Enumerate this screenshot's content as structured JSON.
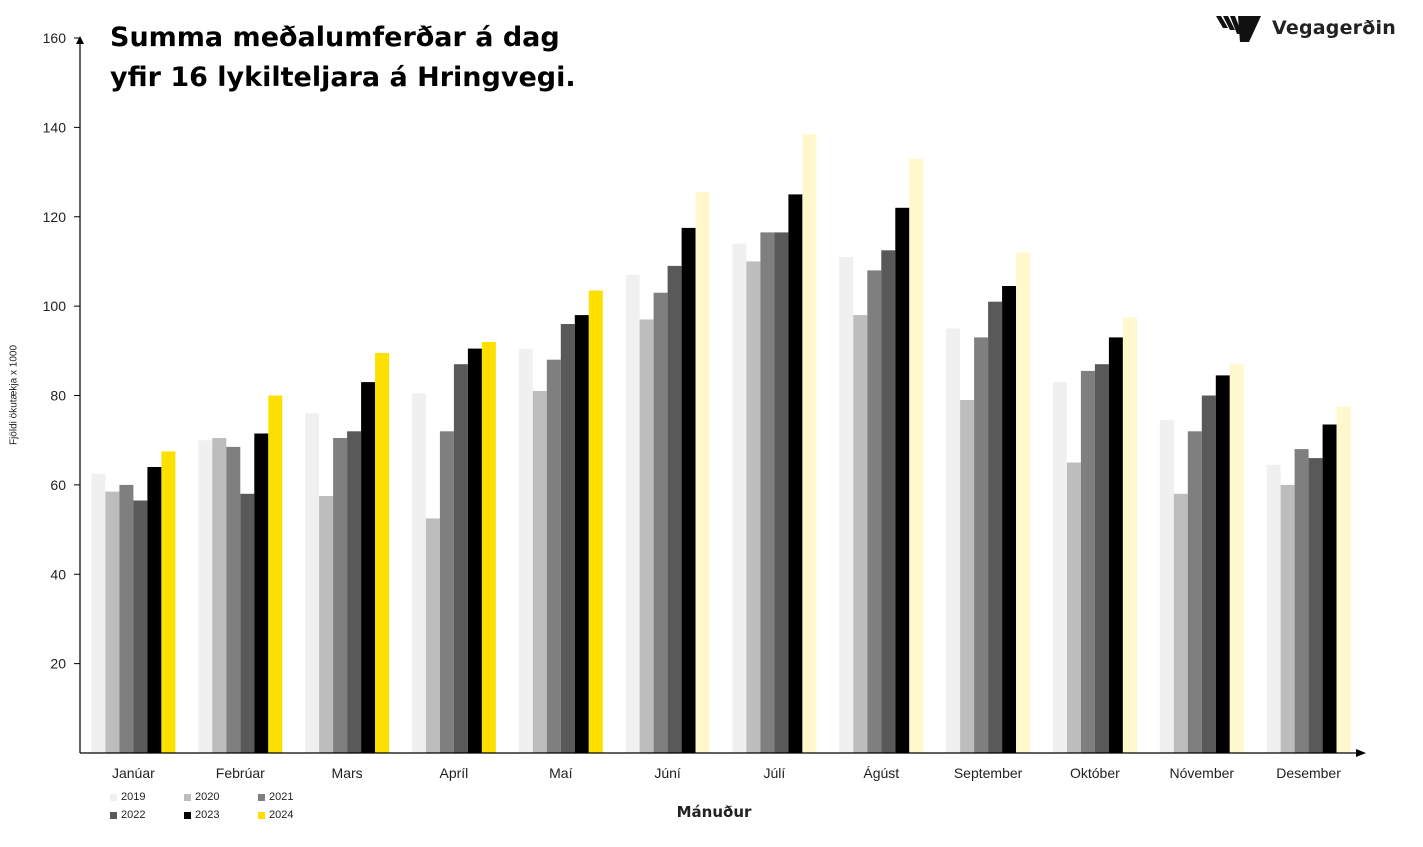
{
  "title_lines": [
    "Summa meðalumferðar á dag",
    "yfir 16 lykilteljara á Hringvegi."
  ],
  "logo": {
    "text": "Vegagerðin",
    "icon": "stripes-logo-icon"
  },
  "chart_data": {
    "type": "bar",
    "title": "Summa meðalumferðar á dag yfir 16 lykilteljara á Hringvegi.",
    "xlabel": "Mánuður",
    "ylabel": "Fjöldi ökutækja x 1000",
    "ylim": [
      0,
      160
    ],
    "yticks": [
      20,
      40,
      60,
      80,
      100,
      120,
      140,
      160
    ],
    "grid": false,
    "legend_position": "bottom-left",
    "categories": [
      "Janúar",
      "Febrúar",
      "Mars",
      "Apríl",
      "Maí",
      "Júní",
      "Júlí",
      "Ágúst",
      "September",
      "Október",
      "Nóvember",
      "Desember"
    ],
    "series": [
      {
        "name": "2019",
        "color": "#f0f0f0",
        "values": [
          62.5,
          70,
          76,
          80.5,
          90.5,
          107,
          114,
          111,
          95,
          83,
          74.5,
          64.5
        ]
      },
      {
        "name": "2020",
        "color": "#bdbdbd",
        "values": [
          58.5,
          70.5,
          57.5,
          52.5,
          81,
          97,
          110,
          98,
          79,
          65,
          58,
          60
        ]
      },
      {
        "name": "2021",
        "color": "#7f7f7f",
        "values": [
          60,
          68.5,
          70.5,
          72,
          88,
          103,
          116.5,
          108,
          93,
          85.5,
          72,
          68
        ]
      },
      {
        "name": "2022",
        "color": "#595959",
        "values": [
          56.5,
          58,
          72,
          87,
          96,
          109,
          116.5,
          112.5,
          101,
          87,
          80,
          66
        ]
      },
      {
        "name": "2023",
        "color": "#000000",
        "values": [
          64,
          71.5,
          83,
          90.5,
          98,
          117.5,
          125,
          122,
          104.5,
          93,
          84.5,
          73.5
        ]
      },
      {
        "name": "2024",
        "color": "#fde000",
        "values": [
          67.5,
          80,
          89.5,
          92,
          103.5,
          125.5,
          138.5,
          133,
          112,
          97.5,
          87,
          77.5
        ],
        "partial_color": "#fff8cc",
        "partial_from_index": 5
      }
    ]
  }
}
